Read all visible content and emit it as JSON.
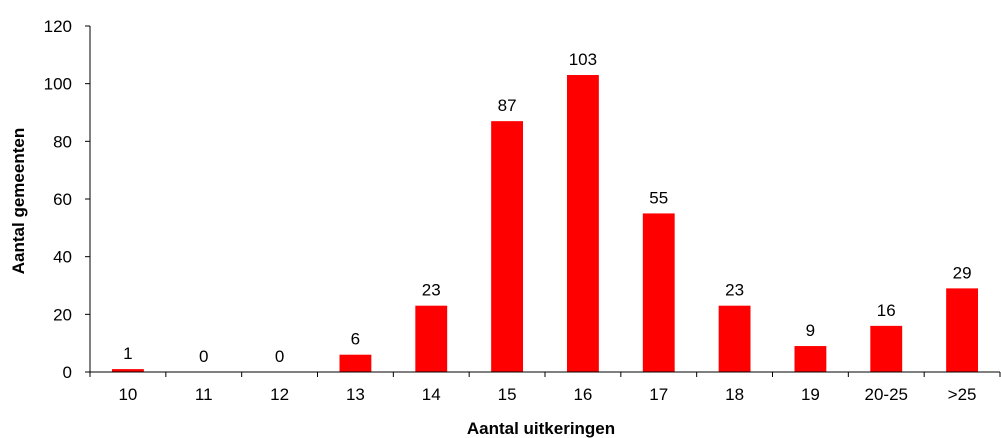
{
  "chart_data": {
    "type": "bar",
    "categories": [
      "10",
      "11",
      "12",
      "13",
      "14",
      "15",
      "16",
      "17",
      "18",
      "19",
      "20-25",
      ">25"
    ],
    "values": [
      1,
      0,
      0,
      6,
      23,
      87,
      103,
      55,
      23,
      9,
      16,
      29
    ],
    "xlabel": "Aantal uitkeringen",
    "ylabel": "Aantal gemeenten",
    "ylim": [
      0,
      120
    ],
    "yticks": [
      0,
      20,
      40,
      60,
      80,
      100,
      120
    ],
    "grid": false,
    "legend": "none",
    "bar_color": "#ff0000"
  }
}
